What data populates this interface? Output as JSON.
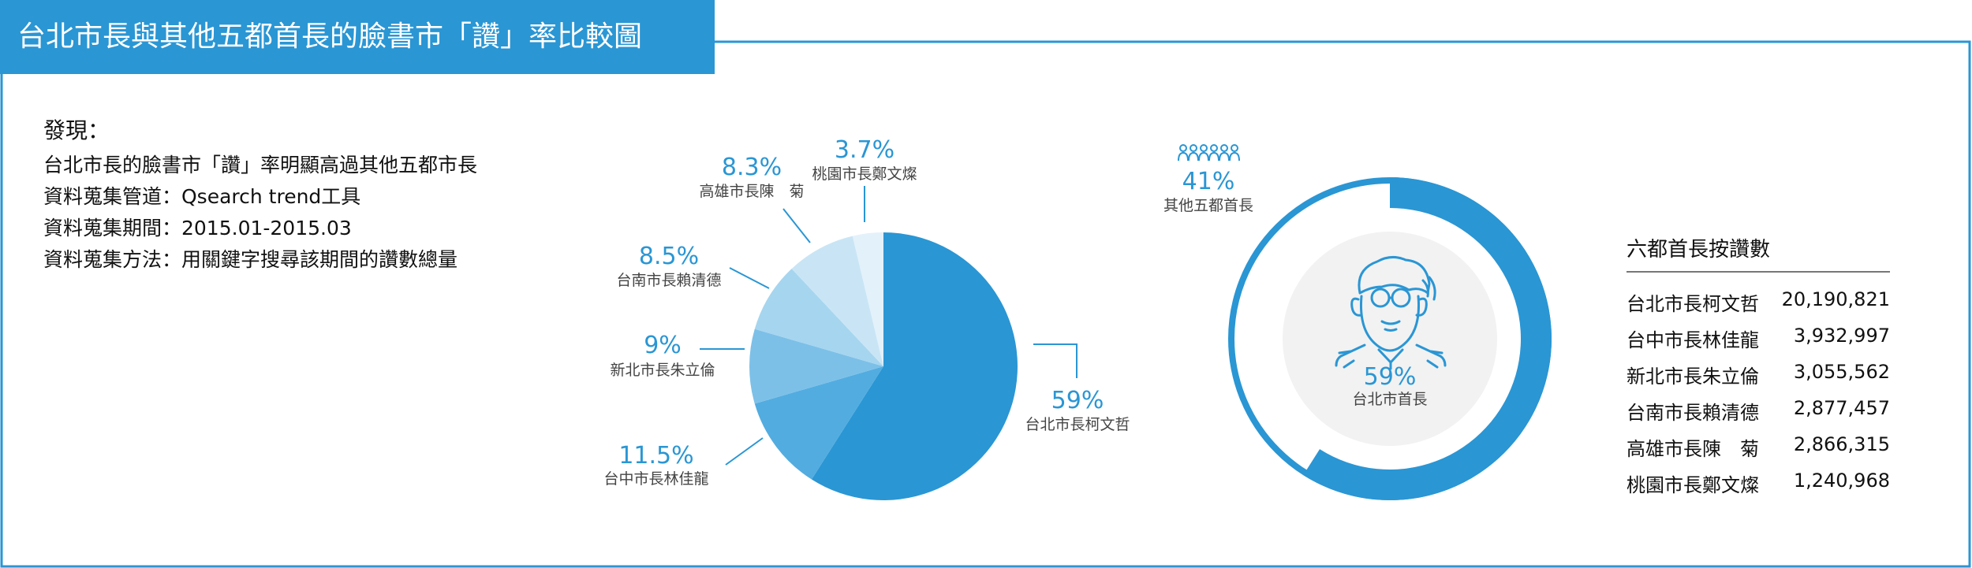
{
  "title": "台北市長與其他五都首長的臉書市「讚」率比較圖",
  "findings": {
    "heading": "發現：",
    "lines": [
      "台北市長的臉書市「讚」率明顯高過其他五都市長",
      "資料蒐集管道：Qsearch trend工具",
      "資料蒐集期間：2015.01-2015.03",
      "資料蒐集方法：用關鍵字搜尋該期間的讚數總量"
    ]
  },
  "colors": {
    "accent": "#2a96d4",
    "slices": [
      "#2a96d4",
      "#52ace0",
      "#7cc0e8",
      "#a6d5ef",
      "#c9e5f5",
      "#e3f1fa"
    ],
    "donut_center": "#f2f2f2"
  },
  "chart_data": [
    {
      "type": "pie",
      "categories": [
        "台北市長柯文哲",
        "台中市長林佳龍",
        "新北市長朱立倫",
        "台南市長賴清德",
        "高雄市長陳　菊",
        "桃園市長鄭文燦"
      ],
      "values": [
        59,
        11.5,
        9,
        8.5,
        8.3,
        3.7
      ],
      "value_labels": [
        "59%",
        "11.5%",
        "9%",
        "8.5%",
        "8.3%",
        "3.7%"
      ]
    },
    {
      "type": "pie",
      "categories": [
        "台北市首長",
        "其他五都首長"
      ],
      "values": [
        59,
        41
      ],
      "value_labels": [
        "59%",
        "41%"
      ],
      "center_icon": "mayor-face-icon",
      "people_icon": "people-group-icon"
    },
    {
      "type": "table",
      "title": "六都首長按讚數",
      "rows": [
        {
          "name": "台北市長柯文哲",
          "value": "20,190,821"
        },
        {
          "name": "台中市長林佳龍",
          "value": "3,932,997"
        },
        {
          "name": "新北市長朱立倫",
          "value": "3,055,562"
        },
        {
          "name": "台南市長賴清德",
          "value": "2,877,457"
        },
        {
          "name": "高雄市長陳　菊",
          "value": "2,866,315"
        },
        {
          "name": "桃園市長鄭文燦",
          "value": "1,240,968"
        }
      ]
    }
  ]
}
